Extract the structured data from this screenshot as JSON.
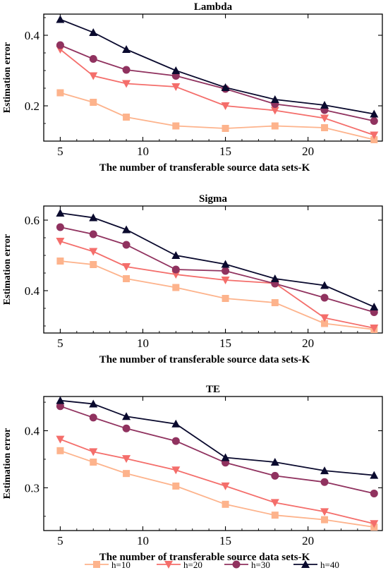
{
  "chart_data": [
    {
      "type": "line",
      "title": "Lambda",
      "xlabel": "The number of transferable source data sets-K",
      "ylabel": "Estimation error",
      "x": [
        5,
        7,
        9,
        12,
        15,
        18,
        21,
        24
      ],
      "xlim": [
        4,
        24.5
      ],
      "ylim": [
        0.1,
        0.46
      ],
      "xticks": [
        5,
        10,
        15,
        20
      ],
      "yticks": [
        0.2,
        0.4
      ],
      "grid": false,
      "series": [
        {
          "name": "h=10",
          "values": [
            0.237,
            0.21,
            0.168,
            0.143,
            0.136,
            0.143,
            0.138,
            0.104
          ]
        },
        {
          "name": "h=20",
          "values": [
            0.36,
            0.285,
            0.263,
            0.254,
            0.2,
            0.187,
            0.165,
            0.117
          ]
        },
        {
          "name": "h=30",
          "values": [
            0.372,
            0.333,
            0.302,
            0.285,
            0.248,
            0.205,
            0.188,
            0.157
          ]
        },
        {
          "name": "h=40",
          "values": [
            0.445,
            0.408,
            0.36,
            0.3,
            0.252,
            0.218,
            0.202,
            0.177
          ]
        }
      ]
    },
    {
      "type": "line",
      "title": "Sigma",
      "xlabel": "The number of transferable source data sets-K",
      "ylabel": "Estimation error",
      "x": [
        5,
        7,
        9,
        12,
        15,
        18,
        21,
        24
      ],
      "xlim": [
        4,
        24.5
      ],
      "ylim": [
        0.28,
        0.64
      ],
      "xticks": [
        5,
        10,
        15,
        20
      ],
      "yticks": [
        0.4,
        0.6
      ],
      "grid": false,
      "series": [
        {
          "name": "h=10",
          "values": [
            0.484,
            0.474,
            0.434,
            0.409,
            0.378,
            0.366,
            0.307,
            0.29
          ]
        },
        {
          "name": "h=20",
          "values": [
            0.54,
            0.511,
            0.468,
            0.446,
            0.43,
            0.421,
            0.323,
            0.294
          ]
        },
        {
          "name": "h=30",
          "values": [
            0.58,
            0.56,
            0.53,
            0.46,
            0.456,
            0.42,
            0.38,
            0.339
          ]
        },
        {
          "name": "h=40",
          "values": [
            0.62,
            0.607,
            0.573,
            0.5,
            0.475,
            0.434,
            0.415,
            0.354
          ]
        }
      ]
    },
    {
      "type": "line",
      "title": "TE",
      "xlabel": "The number of transferable source data sets-K",
      "ylabel": "Estimation error",
      "x": [
        5,
        7,
        9,
        12,
        15,
        18,
        21,
        24
      ],
      "xlim": [
        4,
        24.5
      ],
      "ylim": [
        0.225,
        0.46
      ],
      "xticks": [
        5,
        10,
        15,
        20
      ],
      "yticks": [
        0.3,
        0.4
      ],
      "grid": false,
      "series": [
        {
          "name": "h=10",
          "values": [
            0.365,
            0.345,
            0.325,
            0.303,
            0.271,
            0.252,
            0.244,
            0.231
          ]
        },
        {
          "name": "h=20",
          "values": [
            0.385,
            0.363,
            0.351,
            0.331,
            0.303,
            0.274,
            0.258,
            0.237
          ]
        },
        {
          "name": "h=30",
          "values": [
            0.443,
            0.423,
            0.404,
            0.382,
            0.344,
            0.321,
            0.31,
            0.29
          ]
        },
        {
          "name": "h=40",
          "values": [
            0.453,
            0.447,
            0.425,
            0.412,
            0.353,
            0.345,
            0.33,
            0.322
          ]
        }
      ]
    }
  ],
  "legend": {
    "placement": "bottom",
    "entries": [
      {
        "label": "h=10",
        "marker": "square",
        "color": "#FDB38C"
      },
      {
        "label": "h=20",
        "marker": "triangle-down",
        "color": "#F46E6B"
      },
      {
        "label": "h=30",
        "marker": "circle",
        "color": "#90325F"
      },
      {
        "label": "h=40",
        "marker": "triangle-up",
        "color": "#0A0A2E"
      }
    ]
  }
}
